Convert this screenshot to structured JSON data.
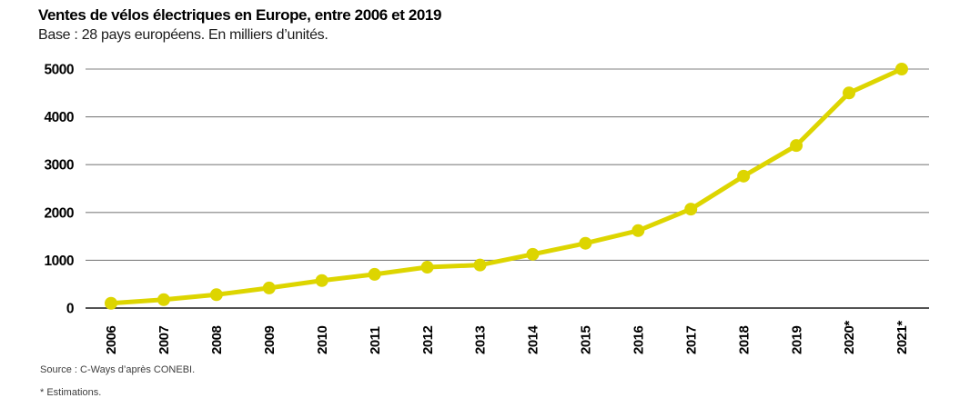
{
  "page": {
    "title": "Ventes de vélos électriques en Europe, entre 2006 et 2019",
    "subtitle": "Base : 28 pays européens. En milliers d’unités."
  },
  "footer": {
    "source": "Source : C-Ways d’après CONEBI.",
    "note": "* Estimations."
  },
  "colors": {
    "line": "#ddd500",
    "grid": "#808080",
    "axis": "#1a1a1a",
    "text": "#000000"
  },
  "chart_data": {
    "type": "line",
    "title": "Ventes de vélos électriques en Europe, entre 2006 et 2019",
    "subtitle": "Base : 28 pays européens. En milliers d’unités.",
    "ylabel": "milliers d’unités",
    "xlabel": "",
    "categories": [
      "2006",
      "2007",
      "2008",
      "2009",
      "2010",
      "2011",
      "2012",
      "2013",
      "2014",
      "2015",
      "2016",
      "2017",
      "2018",
      "2019",
      "2020*",
      "2021*"
    ],
    "values": [
      100,
      175,
      280,
      420,
      575,
      705,
      855,
      900,
      1125,
      1355,
      1620,
      2070,
      2760,
      3400,
      4500,
      5000
    ],
    "estimated_categories": [
      "2020*",
      "2021*"
    ],
    "ylim": [
      0,
      5000
    ],
    "yticks": [
      0,
      1000,
      2000,
      3000,
      4000,
      5000
    ],
    "grid": true,
    "legend": false,
    "line_color": "#ddd500",
    "marker": "circle"
  }
}
